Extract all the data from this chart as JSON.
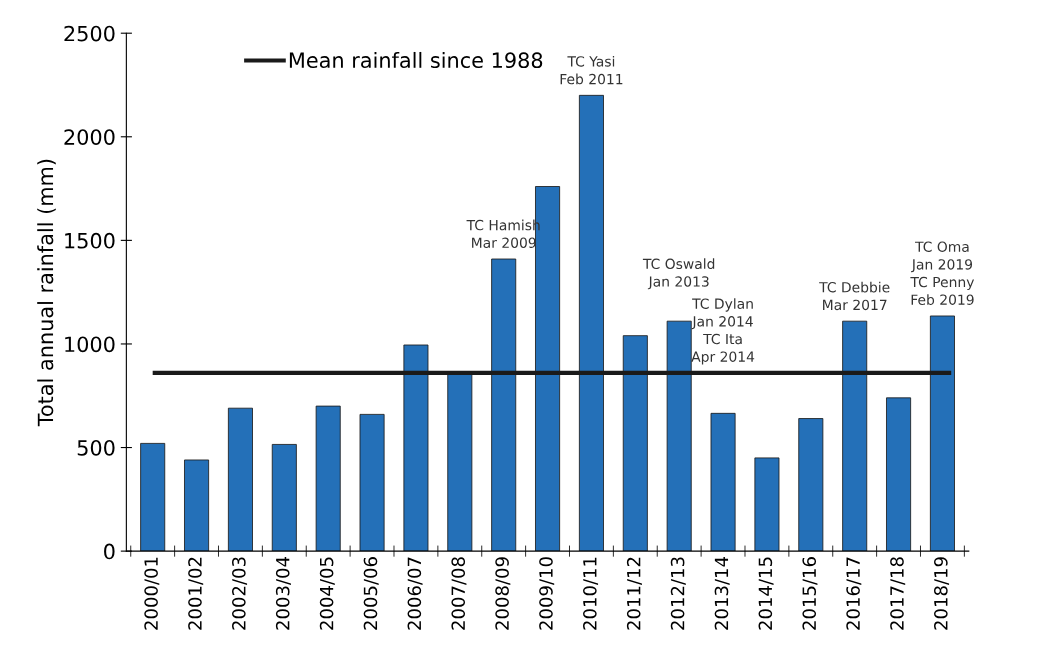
{
  "chart_data": {
    "type": "bar",
    "ylabel": "Total annual rainfall (mm)",
    "categories": [
      "2000/01",
      "2001/02",
      "2002/03",
      "2003/04",
      "2004/05",
      "2005/06",
      "2006/07",
      "2007/08",
      "2008/09",
      "2009/10",
      "2010/11",
      "2011/12",
      "2012/13",
      "2013/14",
      "2014/15",
      "2015/16",
      "2016/17",
      "2017/18",
      "2018/19"
    ],
    "series": [
      {
        "color": "#2470b8",
        "values": [
          520,
          440,
          690,
          515,
          700,
          660,
          995,
          865,
          1410,
          1760,
          2200,
          1040,
          1110,
          665,
          450,
          640,
          1110,
          740,
          1135
        ]
      }
    ],
    "ylim": [
      0,
      2500
    ],
    "yticks": [
      0,
      500,
      1000,
      1500,
      2000,
      2500
    ],
    "ref_lines": [
      {
        "axis": "y",
        "value": 860,
        "label": "Mean rainfall since 1988",
        "color": "#1a1a1a",
        "line_style": "solid"
      }
    ],
    "annotations": [
      {
        "text": "TC Hamish\nMar 2009",
        "x": "2008/09",
        "y": 1410
      },
      {
        "text": "TC Yasi\nFeb 2011",
        "x": "2010/11",
        "y": 2200
      },
      {
        "text": "TC Oswald\nJan 2013",
        "x": "2012/13",
        "y": 1110
      },
      {
        "text": "TC Dylan\nJan 2014\nTC Ita\nApr 2014",
        "x": "2013/14",
        "y": 860
      },
      {
        "text": "TC Debbie\nMar 2017",
        "x": "2016/17",
        "y": 1110
      },
      {
        "text": "TC Oma\nJan 2019\nTC Penny\nFeb 2019",
        "x": "2018/19",
        "y": 1135
      }
    ],
    "legend": "top left",
    "grid": false
  }
}
